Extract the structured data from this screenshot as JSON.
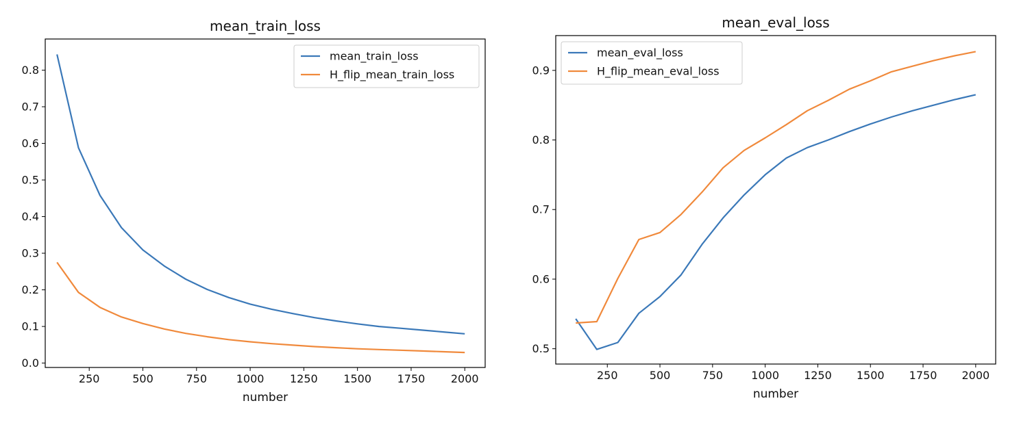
{
  "chart_data": [
    {
      "type": "line",
      "title": "mean_train_loss",
      "xlabel": "number",
      "ylabel": "",
      "xlim": [
        45,
        2095
      ],
      "ylim": [
        -0.012,
        0.885
      ],
      "xticks": [
        250,
        500,
        750,
        1000,
        1250,
        1500,
        1750,
        2000
      ],
      "yticks": [
        0.0,
        0.1,
        0.2,
        0.3,
        0.4,
        0.5,
        0.6,
        0.7,
        0.8
      ],
      "ytick_labels": [
        "0.0",
        "0.1",
        "0.2",
        "0.3",
        "0.4",
        "0.5",
        "0.6",
        "0.7",
        "0.8"
      ],
      "legend_position": "top-right",
      "grid": false,
      "x": [
        100,
        200,
        300,
        400,
        500,
        600,
        700,
        800,
        900,
        1000,
        1100,
        1200,
        1300,
        1400,
        1500,
        1600,
        1700,
        1800,
        1900,
        2000
      ],
      "series": [
        {
          "name": "mean_train_loss",
          "color": "#3a78b8",
          "values": [
            0.843,
            0.588,
            0.458,
            0.37,
            0.309,
            0.265,
            0.229,
            0.201,
            0.179,
            0.161,
            0.147,
            0.135,
            0.124,
            0.115,
            0.107,
            0.1,
            0.095,
            0.09,
            0.085,
            0.08
          ]
        },
        {
          "name": "H_flip_mean_train_loss",
          "color": "#f0893b",
          "values": [
            0.275,
            0.193,
            0.152,
            0.126,
            0.108,
            0.093,
            0.081,
            0.072,
            0.064,
            0.058,
            0.053,
            0.049,
            0.045,
            0.042,
            0.039,
            0.037,
            0.035,
            0.033,
            0.031,
            0.029
          ]
        }
      ]
    },
    {
      "type": "line",
      "title": "mean_eval_loss",
      "xlabel": "number",
      "ylabel": "",
      "xlim": [
        5,
        2095
      ],
      "ylim": [
        0.478,
        0.95
      ],
      "xticks": [
        250,
        500,
        750,
        1000,
        1250,
        1500,
        1750,
        2000
      ],
      "yticks": [
        0.5,
        0.6,
        0.7,
        0.8,
        0.9
      ],
      "ytick_labels": [
        "0.5",
        "0.6",
        "0.7",
        "0.8",
        "0.9"
      ],
      "legend_position": "top-left",
      "grid": false,
      "x": [
        100,
        200,
        300,
        400,
        500,
        600,
        700,
        800,
        900,
        1000,
        1100,
        1200,
        1300,
        1400,
        1500,
        1600,
        1700,
        1800,
        1900,
        2000
      ],
      "series": [
        {
          "name": "mean_eval_loss",
          "color": "#3a78b8",
          "values": [
            0.543,
            0.499,
            0.509,
            0.551,
            0.575,
            0.606,
            0.65,
            0.688,
            0.721,
            0.75,
            0.774,
            0.789,
            0.8,
            0.812,
            0.823,
            0.833,
            0.842,
            0.85,
            0.858,
            0.865
          ]
        },
        {
          "name": "H_flip_mean_eval_loss",
          "color": "#f0893b",
          "values": [
            0.537,
            0.539,
            0.601,
            0.657,
            0.667,
            0.693,
            0.725,
            0.76,
            0.785,
            0.803,
            0.822,
            0.842,
            0.857,
            0.873,
            0.885,
            0.898,
            0.906,
            0.914,
            0.921,
            0.927
          ]
        }
      ]
    }
  ]
}
